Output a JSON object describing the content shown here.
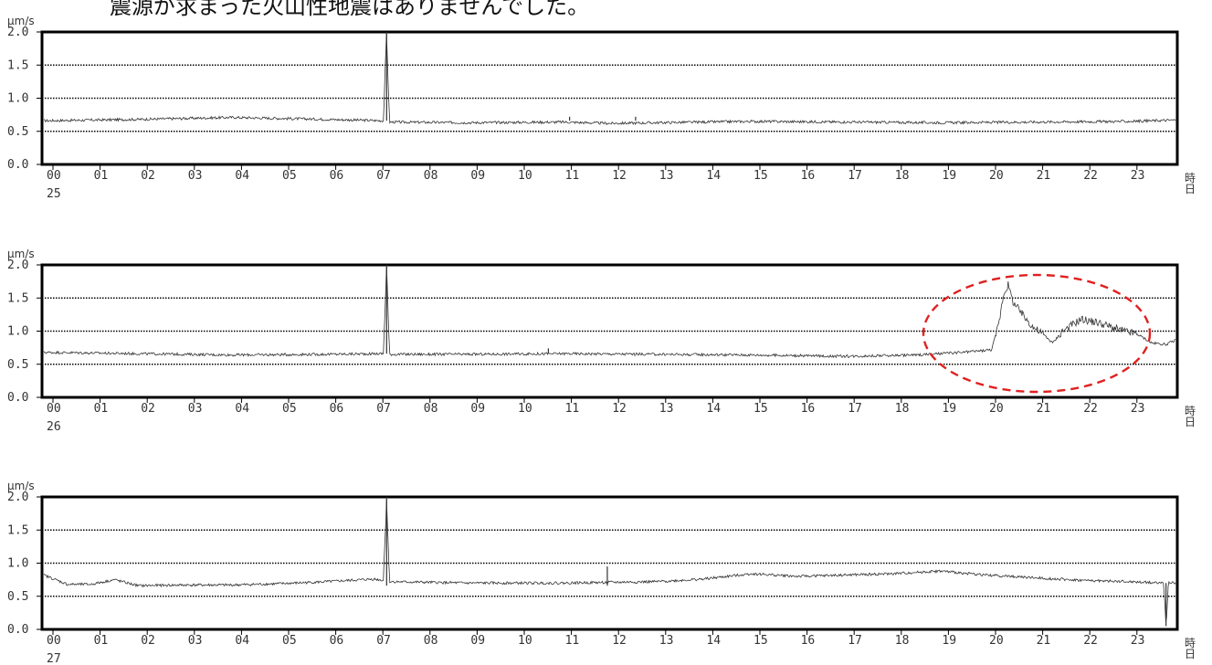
{
  "header": {
    "text": "震源が求まった火山性地震はありませんでした。"
  },
  "chart_data": [
    {
      "type": "line",
      "unit": "μm/s",
      "date_label": "25",
      "x_tick_labels": [
        "00",
        "01",
        "02",
        "03",
        "04",
        "05",
        "06",
        "07",
        "08",
        "09",
        "10",
        "11",
        "12",
        "13",
        "14",
        "15",
        "16",
        "17",
        "18",
        "19",
        "20",
        "21",
        "22",
        "23"
      ],
      "x_axis_suffix": [
        "時",
        "日"
      ],
      "y_ticks": [
        "0.0",
        "0.5",
        "1.0",
        "1.5",
        "2.0"
      ],
      "ylim": [
        0,
        2.0
      ],
      "xlim_hours": [
        0,
        24
      ],
      "grid": "dotted at 0.5, 1.0, 1.5",
      "series": [
        {
          "points": [
            [
              0,
              0.66
            ],
            [
              2,
              0.68
            ],
            [
              4,
              0.71
            ],
            [
              6,
              0.68
            ],
            [
              7.2,
              0.66
            ],
            [
              7.27,
              2.0
            ],
            [
              7.33,
              0.64
            ],
            [
              9,
              0.63
            ],
            [
              11,
              0.64
            ],
            [
              12,
              0.62
            ],
            [
              13,
              0.63
            ],
            [
              15,
              0.65
            ],
            [
              17,
              0.64
            ],
            [
              19,
              0.63
            ],
            [
              21,
              0.64
            ],
            [
              23,
              0.65
            ],
            [
              24,
              0.67
            ]
          ],
          "spikes": [
            [
              7.27,
              2.0
            ],
            [
              11.15,
              0.72
            ],
            [
              12.55,
              0.72
            ]
          ]
        }
      ]
    },
    {
      "type": "line",
      "unit": "μm/s",
      "date_label": "26",
      "x_tick_labels": [
        "00",
        "01",
        "02",
        "03",
        "04",
        "05",
        "06",
        "07",
        "08",
        "09",
        "10",
        "11",
        "12",
        "13",
        "14",
        "15",
        "16",
        "17",
        "18",
        "19",
        "20",
        "21",
        "22",
        "23"
      ],
      "x_axis_suffix": [
        "時",
        "日"
      ],
      "y_ticks": [
        "0.0",
        "0.5",
        "1.0",
        "1.5",
        "2.0"
      ],
      "ylim": [
        0,
        2.0
      ],
      "xlim_hours": [
        0,
        24
      ],
      "grid": "dotted at 0.5, 1.0, 1.5",
      "highlight": {
        "shape": "dashed ellipse",
        "color": "#e02020"
      },
      "series": [
        {
          "points": [
            [
              0,
              0.68
            ],
            [
              2,
              0.66
            ],
            [
              4,
              0.64
            ],
            [
              6,
              0.65
            ],
            [
              7.2,
              0.66
            ],
            [
              7.27,
              2.0
            ],
            [
              7.33,
              0.65
            ],
            [
              9,
              0.65
            ],
            [
              11,
              0.66
            ],
            [
              13,
              0.65
            ],
            [
              15,
              0.64
            ],
            [
              17,
              0.62
            ],
            [
              18.5,
              0.64
            ],
            [
              19.5,
              0.68
            ],
            [
              20.1,
              0.72
            ],
            [
              20.25,
              1.1
            ],
            [
              20.35,
              1.55
            ],
            [
              20.45,
              1.7
            ],
            [
              20.55,
              1.45
            ],
            [
              20.75,
              1.25
            ],
            [
              21.0,
              1.05
            ],
            [
              21.2,
              0.95
            ],
            [
              21.4,
              0.82
            ],
            [
              21.6,
              1.0
            ],
            [
              22.0,
              1.18
            ],
            [
              22.4,
              1.12
            ],
            [
              22.8,
              1.02
            ],
            [
              23.2,
              0.95
            ],
            [
              23.5,
              0.82
            ],
            [
              23.8,
              0.8
            ],
            [
              24,
              0.86
            ]
          ],
          "spikes": [
            [
              7.27,
              2.0
            ],
            [
              10.7,
              0.74
            ]
          ]
        }
      ]
    },
    {
      "type": "line",
      "unit": "μm/s",
      "date_label": "27",
      "x_tick_labels": [
        "00",
        "01",
        "02",
        "03",
        "04",
        "05",
        "06",
        "07",
        "08",
        "09",
        "10",
        "11",
        "12",
        "13",
        "14",
        "15",
        "16",
        "17",
        "18",
        "19",
        "20",
        "21",
        "22",
        "23"
      ],
      "x_axis_suffix": [
        "時",
        "日"
      ],
      "y_ticks": [
        "0.0",
        "0.5",
        "1.0",
        "1.5",
        "2.0"
      ],
      "ylim": [
        0,
        2.0
      ],
      "xlim_hours": [
        0,
        24
      ],
      "grid": "dotted at 0.5, 1.0, 1.5",
      "series": [
        {
          "points": [
            [
              0,
              0.82
            ],
            [
              0.5,
              0.68
            ],
            [
              1,
              0.68
            ],
            [
              1.5,
              0.75
            ],
            [
              2,
              0.66
            ],
            [
              3,
              0.67
            ],
            [
              4,
              0.67
            ],
            [
              5,
              0.69
            ],
            [
              6,
              0.72
            ],
            [
              7,
              0.76
            ],
            [
              7.2,
              0.74
            ],
            [
              7.27,
              2.0
            ],
            [
              7.33,
              0.72
            ],
            [
              9,
              0.7
            ],
            [
              11,
              0.7
            ],
            [
              12,
              0.71
            ],
            [
              13,
              0.72
            ],
            [
              14,
              0.76
            ],
            [
              15,
              0.84
            ],
            [
              16,
              0.8
            ],
            [
              17,
              0.82
            ],
            [
              18,
              0.84
            ],
            [
              19,
              0.88
            ],
            [
              20,
              0.82
            ],
            [
              21,
              0.78
            ],
            [
              22,
              0.74
            ],
            [
              23,
              0.72
            ],
            [
              23.75,
              0.7
            ],
            [
              23.8,
              0.05
            ],
            [
              23.85,
              0.7
            ],
            [
              24,
              0.7
            ]
          ],
          "spikes": [
            [
              7.27,
              2.0
            ],
            [
              11.95,
              0.95
            ],
            [
              23.8,
              0.05
            ]
          ]
        }
      ]
    }
  ]
}
